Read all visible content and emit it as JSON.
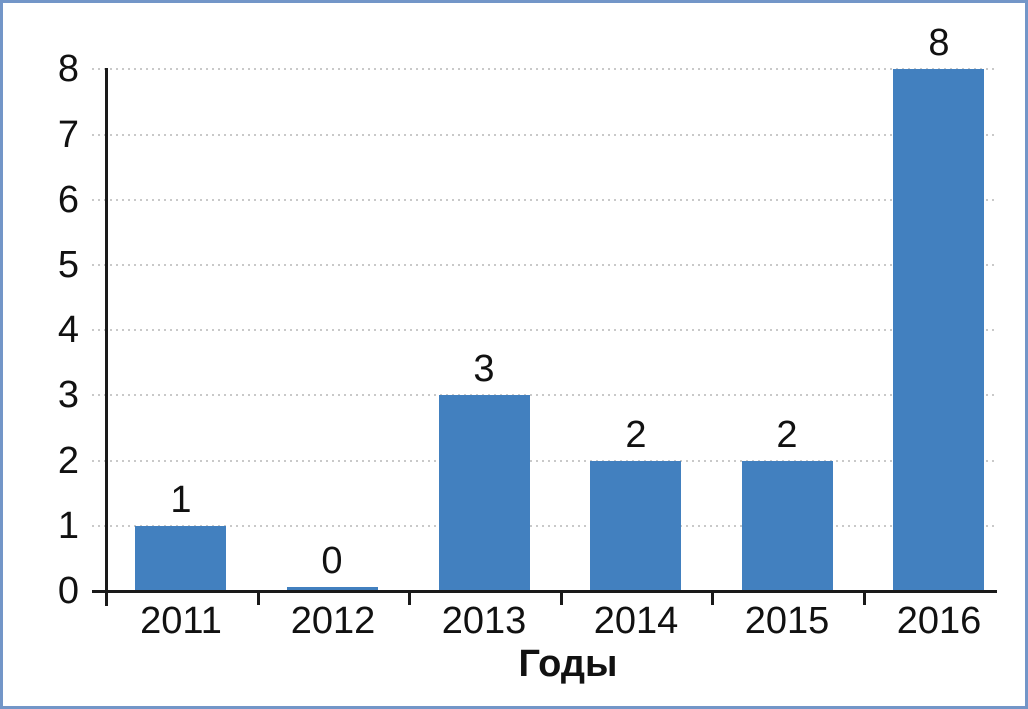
{
  "chart_data": {
    "type": "bar",
    "categories": [
      "2011",
      "2012",
      "2013",
      "2014",
      "2015",
      "2016"
    ],
    "values": [
      1,
      0,
      3,
      2,
      2,
      8
    ],
    "value_labels": [
      "1",
      "0",
      "3",
      "2",
      "2",
      "8"
    ],
    "title": "",
    "xlabel": "Годы",
    "ylabel": "",
    "ylim": [
      0,
      8
    ],
    "yticks": [
      "0",
      "1",
      "2",
      "3",
      "4",
      "5",
      "6",
      "7",
      "8"
    ],
    "grid": "horizontal-dotted",
    "legend": "none",
    "colors": {
      "bar": "#4280BF",
      "axis": "#1a1a1a",
      "gridline": "#c9c9c9",
      "frame_border": "#7396C8",
      "text": "#111111"
    }
  }
}
